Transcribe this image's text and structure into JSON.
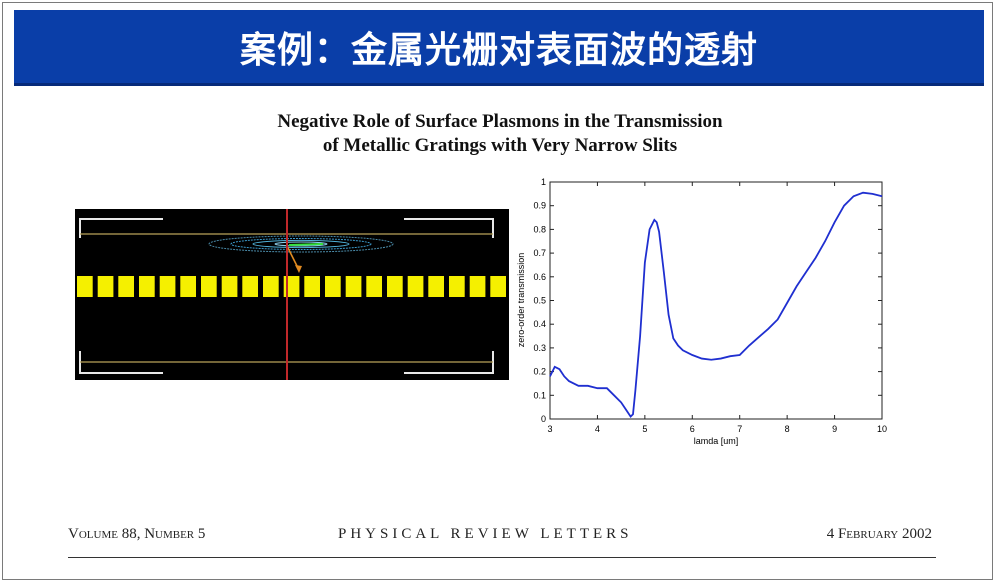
{
  "slide": {
    "title": "案例：金属光栅对表面波的透射"
  },
  "paper": {
    "title_line1": "Negative Role of Surface Plasmons in the Transmission",
    "title_line2": "of Metallic Gratings with Very Narrow Slits"
  },
  "footer": {
    "volume": "Volume 88, Number 5",
    "journal": "PHYSICAL REVIEW LETTERS",
    "date": "4 February 2002"
  },
  "simulation_image": {
    "background": "#000000",
    "grating_color": "#f5f000",
    "guide_line_color": "#b9a45a",
    "marker_line_color": "#c0282a",
    "slit_count": 21
  },
  "chart_data": {
    "type": "line",
    "title": "",
    "xlabel": "lamda [um]",
    "ylabel": "zero-order transmission",
    "xlim": [
      3,
      10
    ],
    "ylim": [
      0,
      1
    ],
    "xticks": [
      3,
      4,
      5,
      6,
      7,
      8,
      9,
      10
    ],
    "yticks": [
      0,
      0.1,
      0.2,
      0.3,
      0.4,
      0.5,
      0.6,
      0.7,
      0.8,
      0.9,
      1
    ],
    "ytick_labels": [
      "0",
      "0.1",
      "0.2",
      "0.3",
      "0.4",
      "0.5",
      "0.6",
      "0.7",
      "0.8",
      "0.9",
      "1"
    ],
    "grid": false,
    "line_color": "#1f2fd0",
    "series": [
      {
        "x": [
          3.0,
          3.1,
          3.2,
          3.3,
          3.4,
          3.6,
          3.8,
          4.0,
          4.2,
          4.3,
          4.5,
          4.6,
          4.7,
          4.75,
          4.8,
          4.9,
          5.0,
          5.1,
          5.2,
          5.25,
          5.3,
          5.4,
          5.5,
          5.6,
          5.7,
          5.8,
          6.0,
          6.2,
          6.4,
          6.6,
          6.8,
          7.0,
          7.2,
          7.4,
          7.6,
          7.8,
          8.0,
          8.2,
          8.4,
          8.6,
          8.8,
          9.0,
          9.2,
          9.4,
          9.6,
          9.8,
          10.0
        ],
        "y": [
          0.18,
          0.22,
          0.21,
          0.18,
          0.16,
          0.14,
          0.14,
          0.13,
          0.13,
          0.11,
          0.07,
          0.04,
          0.01,
          0.02,
          0.12,
          0.35,
          0.66,
          0.8,
          0.84,
          0.83,
          0.79,
          0.62,
          0.44,
          0.34,
          0.31,
          0.29,
          0.27,
          0.255,
          0.25,
          0.255,
          0.265,
          0.27,
          0.31,
          0.345,
          0.38,
          0.42,
          0.49,
          0.56,
          0.62,
          0.68,
          0.75,
          0.83,
          0.9,
          0.94,
          0.955,
          0.95,
          0.94
        ]
      }
    ]
  }
}
